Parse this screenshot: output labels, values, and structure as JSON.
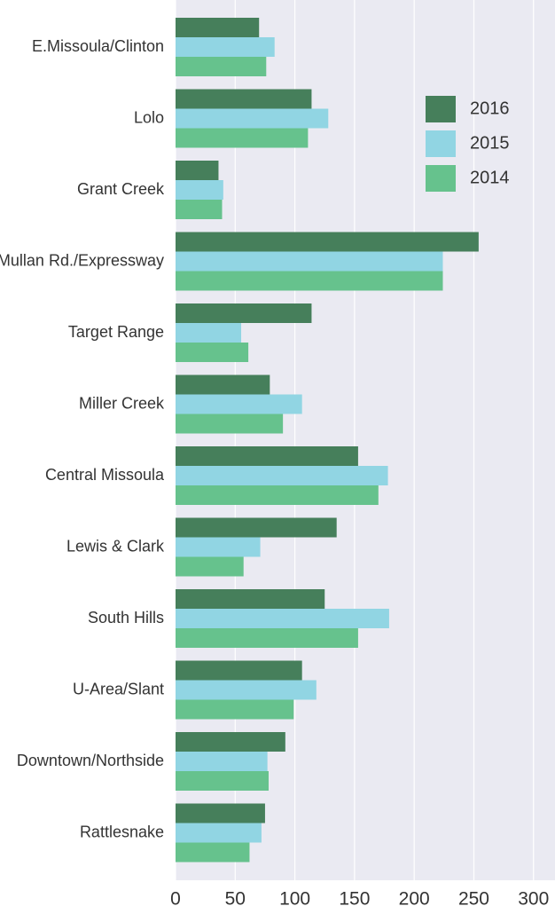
{
  "chart_data": {
    "type": "barh",
    "categories": [
      "E.Missoula/Clinton",
      "Lolo",
      "Grant Creek",
      "Mullan Rd./Expressway",
      "Target Range",
      "Miller Creek",
      "Central Missoula",
      "Lewis & Clark",
      "South Hills",
      "U-Area/Slant",
      "Downtown/Northside",
      "Rattlesnake"
    ],
    "series": [
      {
        "name": "2016",
        "color": "#467f5b",
        "values": [
          70,
          114,
          36,
          254,
          114,
          79,
          153,
          135,
          125,
          106,
          92,
          75
        ]
      },
      {
        "name": "2015",
        "color": "#91d5e3",
        "values": [
          83,
          128,
          40,
          224,
          55,
          106,
          178,
          71,
          179,
          118,
          77,
          72
        ]
      },
      {
        "name": "2014",
        "color": "#66c28d",
        "values": [
          76,
          111,
          39,
          224,
          61,
          90,
          170,
          57,
          153,
          99,
          78,
          62
        ]
      }
    ],
    "xlim": [
      0,
      318
    ],
    "xticks": [
      0,
      50,
      100,
      150,
      200,
      250,
      300
    ],
    "grid": true,
    "legend": "upper right"
  }
}
